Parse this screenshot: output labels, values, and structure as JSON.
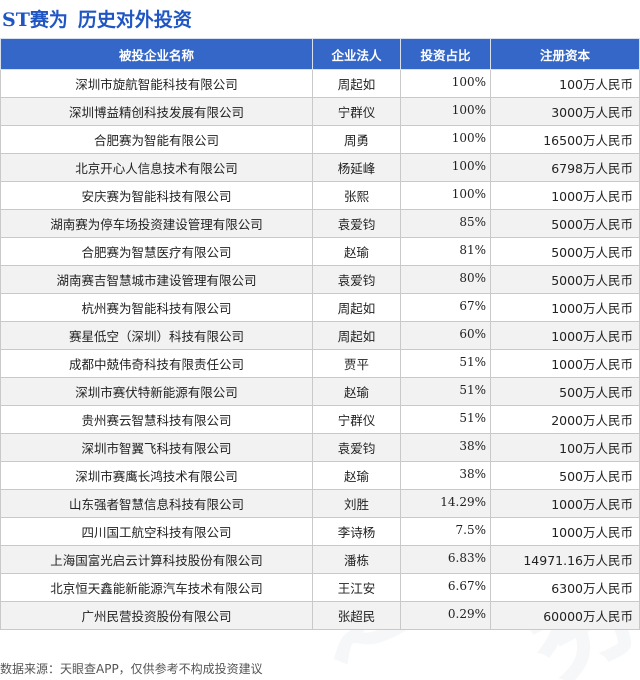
{
  "header": {
    "company": "ST赛为",
    "title": "历史对外投资"
  },
  "table": {
    "columns": [
      "被投企业名称",
      "企业法人",
      "投资占比",
      "注册资本"
    ],
    "rows": [
      [
        "深圳市旋航智能科技有限公司",
        "周起如",
        "100%",
        "100万人民币"
      ],
      [
        "深圳博益精创科技发展有限公司",
        "宁群仪",
        "100%",
        "3000万人民币"
      ],
      [
        "合肥赛为智能有限公司",
        "周勇",
        "100%",
        "16500万人民币"
      ],
      [
        "北京开心人信息技术有限公司",
        "杨延峰",
        "100%",
        "6798万人民币"
      ],
      [
        "安庆赛为智能科技有限公司",
        "张熙",
        "100%",
        "1000万人民币"
      ],
      [
        "湖南赛为停车场投资建设管理有限公司",
        "袁爱钧",
        "85%",
        "5000万人民币"
      ],
      [
        "合肥赛为智慧医疗有限公司",
        "赵瑜",
        "81%",
        "5000万人民币"
      ],
      [
        "湖南赛吉智慧城市建设管理有限公司",
        "袁爱钧",
        "80%",
        "5000万人民币"
      ],
      [
        "杭州赛为智能科技有限公司",
        "周起如",
        "67%",
        "1000万人民币"
      ],
      [
        "赛星低空（深圳）科技有限公司",
        "周起如",
        "60%",
        "1000万人民币"
      ],
      [
        "成都中兢伟奇科技有限责任公司",
        "贾平",
        "51%",
        "1000万人民币"
      ],
      [
        "深圳市赛伏特新能源有限公司",
        "赵瑜",
        "51%",
        "500万人民币"
      ],
      [
        "贵州赛云智慧科技有限公司",
        "宁群仪",
        "51%",
        "2000万人民币"
      ],
      [
        "深圳市智翼飞科技有限公司",
        "袁爱钧",
        "38%",
        "100万人民币"
      ],
      [
        "深圳市赛鹰长鸿技术有限公司",
        "赵瑜",
        "38%",
        "500万人民币"
      ],
      [
        "山东强者智慧信息科技有限公司",
        "刘胜",
        "14.29%",
        "1000万人民币"
      ],
      [
        "四川国工航空科技有限公司",
        "李诗杨",
        "7.5%",
        "1000万人民币"
      ],
      [
        "上海国富光启云计算科技股份有限公司",
        "潘栋",
        "6.83%",
        "14971.16万人民币"
      ],
      [
        "北京恒天鑫能新能源汽车技术有限公司",
        "王江安",
        "6.67%",
        "6300万人民币"
      ],
      [
        "广州民营投资股份有限公司",
        "张超民",
        "0.29%",
        "60000万人民币"
      ]
    ]
  },
  "footer": {
    "source": "数据来源：天眼查APP，仅供参考不构成投资建议"
  },
  "colors": {
    "accent": "#1f56c4",
    "header_bg": "#3567c8",
    "stripe": "#f2f2f2"
  }
}
